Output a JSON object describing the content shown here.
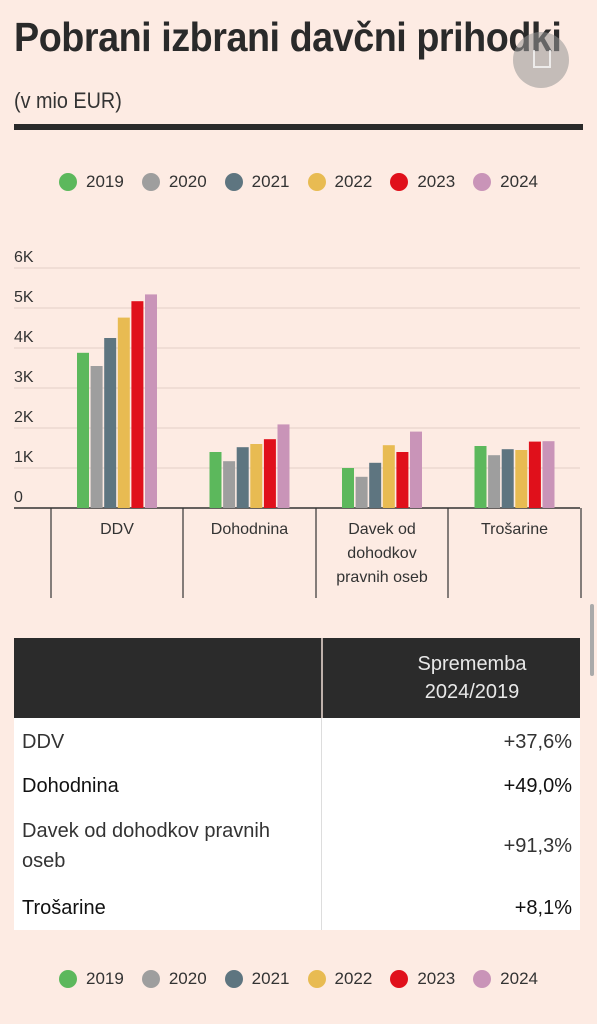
{
  "header": {
    "title": "Pobrani izbrani davčni prihodki",
    "subtitle": "(v mio EUR)"
  },
  "legend": [
    {
      "label": "2019",
      "color": "#5cb85c"
    },
    {
      "label": "2020",
      "color": "#9e9e9e"
    },
    {
      "label": "2021",
      "color": "#5e7580"
    },
    {
      "label": "2022",
      "color": "#e8bb52"
    },
    {
      "label": "2023",
      "color": "#e0101b"
    },
    {
      "label": "2024",
      "color": "#c994b8"
    }
  ],
  "chart_data": {
    "type": "bar",
    "categories": [
      [
        "DDV"
      ],
      [
        "Dohodnina"
      ],
      [
        "Davek od",
        "dohodkov",
        "pravnih oseb"
      ],
      [
        "Trošarine"
      ]
    ],
    "series": [
      {
        "name": "2019",
        "color": "#5cb85c",
        "values": [
          3880,
          1400,
          1000,
          1550
        ]
      },
      {
        "name": "2020",
        "color": "#9e9e9e",
        "values": [
          3550,
          1170,
          780,
          1320
        ]
      },
      {
        "name": "2021",
        "color": "#5e7580",
        "values": [
          4250,
          1520,
          1130,
          1470
        ]
      },
      {
        "name": "2022",
        "color": "#e8bb52",
        "values": [
          4760,
          1600,
          1570,
          1450
        ]
      },
      {
        "name": "2023",
        "color": "#e0101b",
        "values": [
          5170,
          1720,
          1400,
          1660
        ]
      },
      {
        "name": "2024",
        "color": "#c994b8",
        "values": [
          5340,
          2090,
          1910,
          1670
        ]
      }
    ],
    "yticks": [
      {
        "value": 0,
        "label": "0"
      },
      {
        "value": 1000,
        "label": "1K"
      },
      {
        "value": 2000,
        "label": "2K"
      },
      {
        "value": 3000,
        "label": "3K"
      },
      {
        "value": 4000,
        "label": "4K"
      },
      {
        "value": 5000,
        "label": "5K"
      },
      {
        "value": 6000,
        "label": "6K"
      }
    ],
    "ylim": [
      0,
      6000
    ],
    "grid": true,
    "legend_position": "top"
  },
  "table": {
    "header": [
      "",
      "Sprememba 2024/2019"
    ],
    "rows": [
      {
        "label": "DDV",
        "value": "+37,6%",
        "bold": false
      },
      {
        "label": "Dohodnina",
        "value": "+49,0%",
        "bold": true
      },
      {
        "label": "Davek od dohodkov pravnih oseb",
        "value": "+91,3%",
        "bold": false
      },
      {
        "label": "Trošarine",
        "value": "+8,1%",
        "bold": true
      }
    ]
  }
}
